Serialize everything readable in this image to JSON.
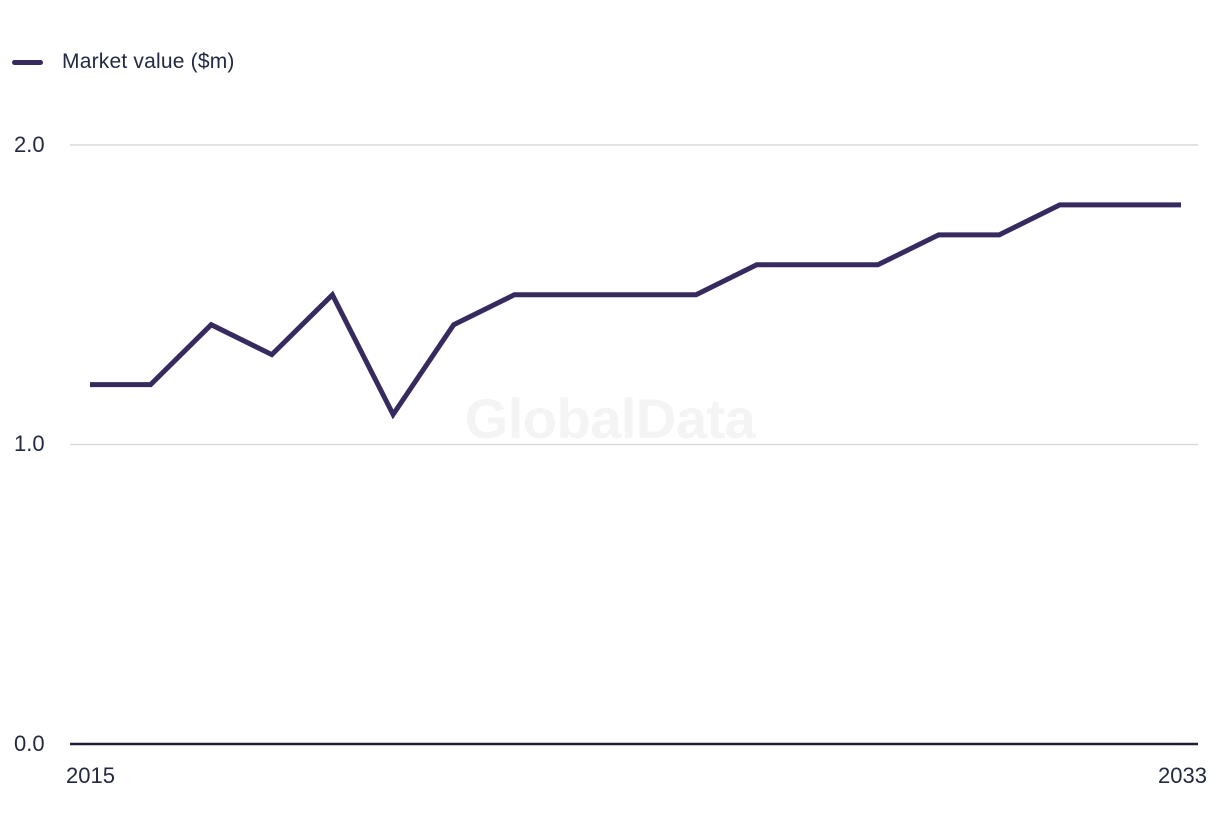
{
  "legend": {
    "label": "Market value ($m)"
  },
  "watermark": "GlobalData",
  "chart_data": {
    "type": "line",
    "title": "",
    "xlabel": "",
    "ylabel": "",
    "x": [
      2015,
      2016,
      2017,
      2018,
      2019,
      2020,
      2021,
      2022,
      2023,
      2024,
      2025,
      2026,
      2027,
      2028,
      2029,
      2030,
      2031,
      2032,
      2033
    ],
    "series": [
      {
        "name": "Market value ($m)",
        "color": "#362A5E",
        "values": [
          1.2,
          1.2,
          1.4,
          1.3,
          1.5,
          1.1,
          1.4,
          1.5,
          1.5,
          1.5,
          1.5,
          1.6,
          1.6,
          1.6,
          1.7,
          1.7,
          1.8,
          1.8,
          1.8
        ]
      }
    ],
    "x_tick_labels": [
      "2015",
      "2033"
    ],
    "y_tick_labels": [
      "0.0",
      "1.0",
      "2.0"
    ],
    "xlim": [
      2015,
      2033
    ],
    "ylim": [
      0,
      2.0
    ],
    "grid": "horizontal-only",
    "legend_position": "top-left",
    "watermark": "GlobalData"
  },
  "colors": {
    "series": "#362A5E",
    "gridline": "#DADADA",
    "axis_line": "#1C1E33",
    "tick_text": "#232940",
    "watermark": "#F4F4F4",
    "background": "#FFFFFF"
  }
}
